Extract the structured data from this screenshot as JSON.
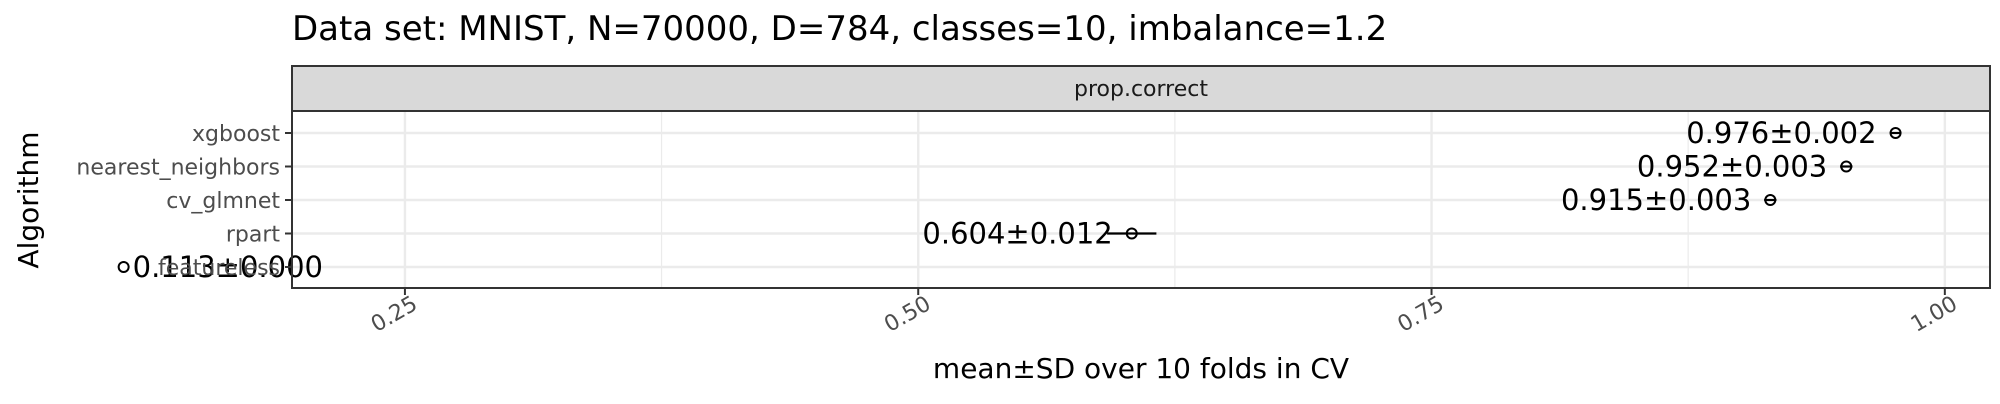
{
  "chart_data": {
    "type": "scatter",
    "title": "Data set: MNIST, N=70000, D=784, classes=10, imbalance=1.2",
    "facet_label": "prop.correct",
    "xlabel": "mean±SD over 10 folds in CV",
    "ylabel": "Algorithm",
    "xlim": [
      0.195,
      1.022
    ],
    "x_ticks": [
      0.25,
      0.5,
      0.75,
      1.0
    ],
    "x_tick_labels": [
      "0.25",
      "0.50",
      "0.75",
      "1.00"
    ],
    "categories": [
      "xgboost",
      "nearest_neighbors",
      "cv_glmnet",
      "rpart",
      "featureless"
    ],
    "points": [
      {
        "algorithm": "xgboost",
        "mean": 0.976,
        "sd": 0.002,
        "label": "0.976±0.002"
      },
      {
        "algorithm": "nearest_neighbors",
        "mean": 0.952,
        "sd": 0.003,
        "label": "0.952±0.003"
      },
      {
        "algorithm": "cv_glmnet",
        "mean": 0.915,
        "sd": 0.003,
        "label": "0.915±0.003"
      },
      {
        "algorithm": "rpart",
        "mean": 0.604,
        "sd": 0.012,
        "label": "0.604±0.012"
      },
      {
        "algorithm": "featureless",
        "mean": 0.113,
        "sd": 0.0,
        "label": "0.113±0.000"
      }
    ],
    "grid": true,
    "legend": "none",
    "colors": {
      "strip_fill": "#d9d9d9",
      "panel_border": "#333333",
      "grid": "#ebebeb",
      "ink": "#000000",
      "tick_text": "#4d4d4d"
    }
  }
}
